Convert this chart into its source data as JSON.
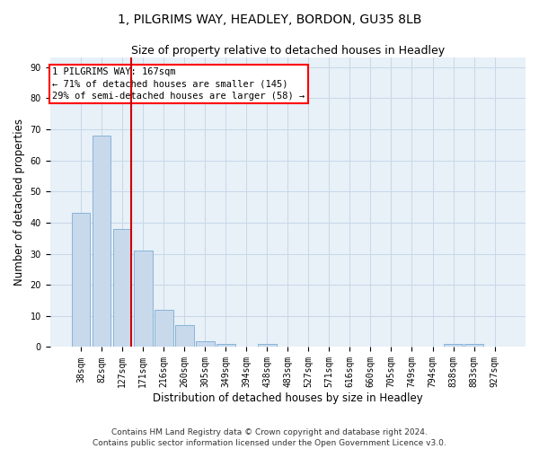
{
  "title1": "1, PILGRIMS WAY, HEADLEY, BORDON, GU35 8LB",
  "title2": "Size of property relative to detached houses in Headley",
  "xlabel": "Distribution of detached houses by size in Headley",
  "ylabel": "Number of detached properties",
  "categories": [
    "38sqm",
    "82sqm",
    "127sqm",
    "171sqm",
    "216sqm",
    "260sqm",
    "305sqm",
    "349sqm",
    "394sqm",
    "438sqm",
    "483sqm",
    "527sqm",
    "571sqm",
    "616sqm",
    "660sqm",
    "705sqm",
    "749sqm",
    "794sqm",
    "838sqm",
    "883sqm",
    "927sqm"
  ],
  "values": [
    43,
    68,
    38,
    31,
    12,
    7,
    2,
    1,
    0,
    1,
    0,
    0,
    0,
    0,
    0,
    0,
    0,
    0,
    1,
    1,
    0
  ],
  "bar_color": "#c9d9ec",
  "bar_edge_color": "#7aadd4",
  "grid_color": "#c8d8e8",
  "bg_color": "#e8f0f8",
  "vline_pos": 2.42,
  "vline_color": "#cc0000",
  "annotation_line1": "1 PILGRIMS WAY: 167sqm",
  "annotation_line2": "← 71% of detached houses are smaller (145)",
  "annotation_line3": "29% of semi-detached houses are larger (58) →",
  "ylim": [
    0,
    93
  ],
  "yticks": [
    0,
    10,
    20,
    30,
    40,
    50,
    60,
    70,
    80,
    90
  ],
  "footnote1": "Contains HM Land Registry data © Crown copyright and database right 2024.",
  "footnote2": "Contains public sector information licensed under the Open Government Licence v3.0.",
  "title1_fontsize": 10,
  "title2_fontsize": 9,
  "xlabel_fontsize": 8.5,
  "ylabel_fontsize": 8.5,
  "tick_fontsize": 7,
  "footnote_fontsize": 6.5,
  "annot_fontsize": 7.5
}
